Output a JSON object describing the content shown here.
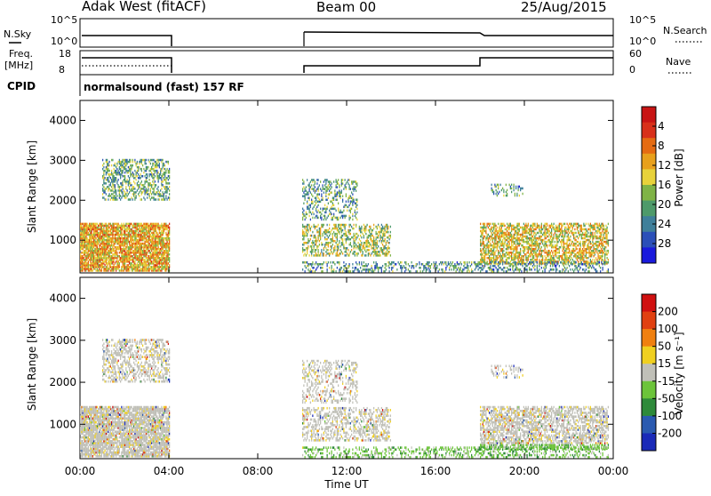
{
  "header": {
    "station": "Adak West (fitACF)",
    "beam": "Beam 00",
    "date": "25/Aug/2015"
  },
  "strip_panels": {
    "nsky_label": "N.Sky",
    "nsky_ticks": [
      "10^5",
      "10^0"
    ],
    "nsearch_label": "N.Search",
    "nsearch_ticks": [
      "10^5",
      "10^0"
    ],
    "freq_label_1": "Freq.",
    "freq_label_2": "[MHz]",
    "freq_ticks": [
      "18",
      "8"
    ],
    "nave_label": "Nave",
    "nave_ticks": [
      "60",
      "0"
    ],
    "cpid_label": "CPID",
    "cpid_text": "normalsound (fast) 157 RF"
  },
  "chart_data": [
    {
      "type": "heatmap",
      "title": "",
      "ylabel": "Slant Range [km]",
      "yticks": [
        "1000",
        "2000",
        "3000",
        "4000"
      ],
      "ylim": [
        180,
        4500
      ],
      "xlim": [
        "00:00",
        "24:00"
      ],
      "colorbar_label": "Power [dB]",
      "colorbar_ticks": [
        "4",
        "8",
        "12",
        "16",
        "20",
        "24",
        "28"
      ],
      "colorbar_colors": [
        "#1a1adc",
        "#2b4fb8",
        "#3f7f9a",
        "#4e9a6a",
        "#7fb346",
        "#e8d23a",
        "#e8a01c",
        "#e56b12",
        "#d8301a",
        "#c81414"
      ],
      "series": [
        {
          "region": "00:00-04:00, 200-1400 km",
          "values_db": [
            18,
            24,
            28,
            22,
            14
          ]
        },
        {
          "region": "01:00-04:00, 2000-3000 km",
          "values_db": [
            10,
            14,
            12
          ]
        },
        {
          "region": "10:00-14:00, 600-1400 km",
          "values_db": [
            12,
            16,
            20,
            14
          ]
        },
        {
          "region": "18:00-23:30, 400-1400 km",
          "values_db": [
            16,
            22,
            26,
            20,
            14
          ]
        }
      ]
    },
    {
      "type": "heatmap",
      "title": "",
      "ylabel": "Slant Range [km]",
      "yticks": [
        "1000",
        "2000",
        "3000",
        "4000"
      ],
      "ylim": [
        180,
        4500
      ],
      "xlim": [
        "00:00",
        "24:00"
      ],
      "xticks": [
        "00:00",
        "04:00",
        "08:00",
        "12:00",
        "16:00",
        "20:00",
        "00:00"
      ],
      "xlabel": "Time UT",
      "colorbar_label": "Velocity [m s⁻¹]",
      "colorbar_ticks": [
        "200",
        "100",
        "50",
        "15",
        "-15",
        "-50",
        "-100",
        "-200"
      ],
      "colorbar_colors": [
        "#1a2ab8",
        "#2a5ab0",
        "#2e8a3a",
        "#6cc43a",
        "#c0c0b8",
        "#f0d020",
        "#f08010",
        "#e04010",
        "#d01010"
      ],
      "series": [
        {
          "region": "00:00-04:00, 600-1400 km",
          "values_ms": [
            0,
            -10,
            5
          ]
        },
        {
          "region": "10:00-14:00, 300-1100 km",
          "values_ms": [
            -30,
            -60,
            0
          ]
        },
        {
          "region": "18:00-23:30, 400-1400 km",
          "values_ms": [
            0,
            10,
            -5
          ]
        }
      ]
    }
  ]
}
